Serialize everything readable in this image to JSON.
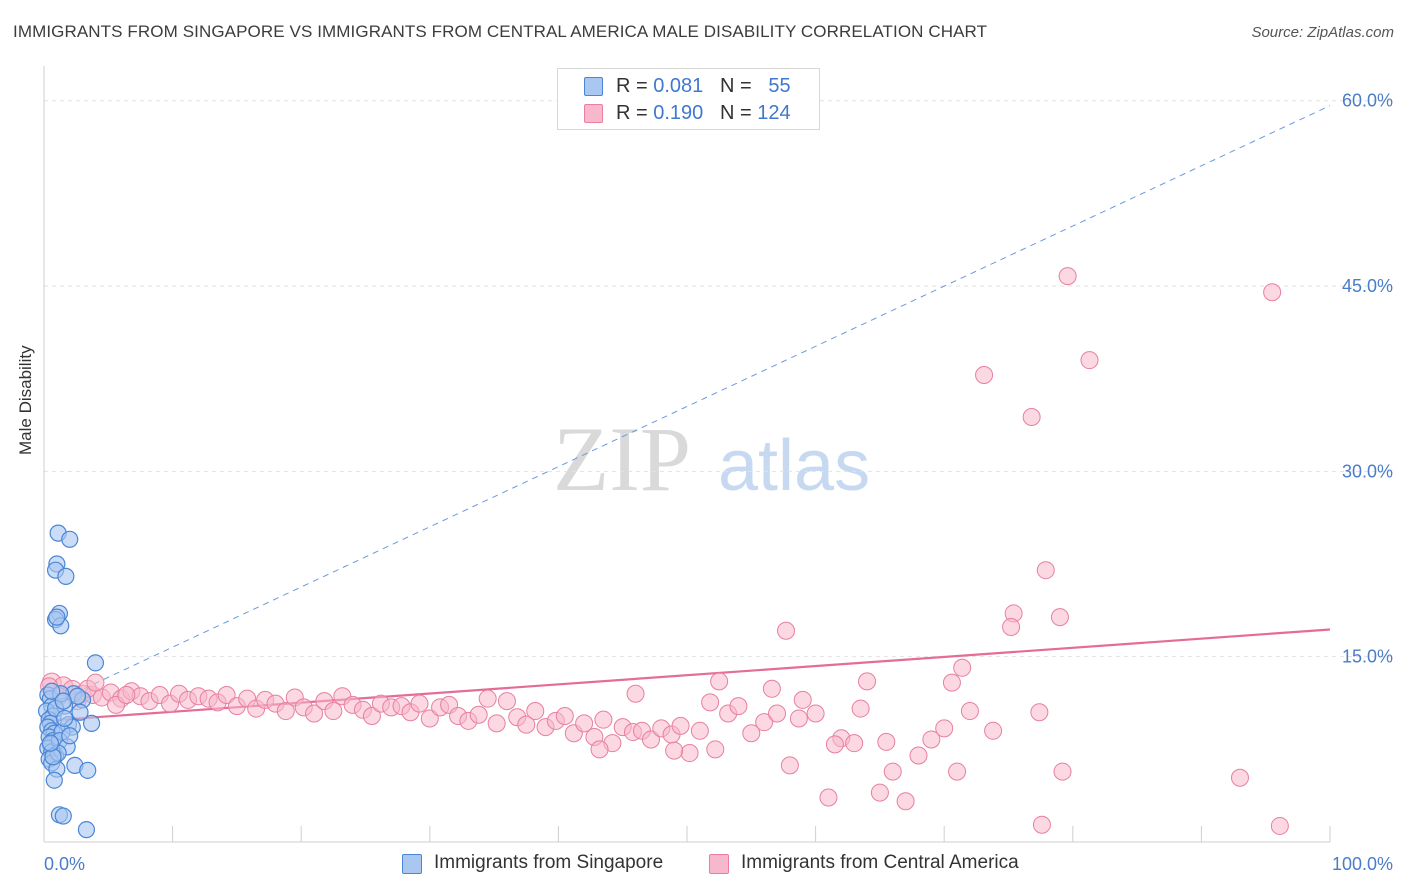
{
  "title": "IMMIGRANTS FROM SINGAPORE VS IMMIGRANTS FROM CENTRAL AMERICA MALE DISABILITY CORRELATION CHART",
  "source": "Source: ZipAtlas.com",
  "watermark": {
    "zip": "ZIP",
    "atlas": "atlas"
  },
  "legend_top": {
    "rows": [
      {
        "r_label": "R = ",
        "r_value": "0.081",
        "n_label": "N = ",
        "n_value": "55"
      },
      {
        "r_label": "R = ",
        "r_value": "0.190",
        "n_label": "N = ",
        "n_value": "124"
      }
    ]
  },
  "legend_bottom": [
    "Immigrants from Singapore",
    "Immigrants from Central America"
  ],
  "colors": {
    "singapore_fill": "#a9c7f0",
    "singapore_stroke": "#4a86d6",
    "central_fill": "#f7b8cb",
    "central_stroke": "#e87fa1",
    "singapore_line": "#6a9ade",
    "central_line": "#e46c97",
    "tick_text": "#4a7cc9",
    "grid": "#e2e2e2"
  },
  "chart_data": {
    "type": "scatter",
    "title": "IMMIGRANTS FROM SINGAPORE VS IMMIGRANTS FROM CENTRAL AMERICA MALE DISABILITY CORRELATION CHART",
    "xlabel": "",
    "ylabel": "Male Disability",
    "xlim": [
      0,
      100
    ],
    "ylim": [
      0,
      62
    ],
    "x_tick_labels": [
      "0.0%",
      "100.0%"
    ],
    "y_ticks": [
      15,
      30,
      45,
      60
    ],
    "y_tick_labels": [
      "15.0%",
      "30.0%",
      "45.0%",
      "60.0%"
    ],
    "grid": "horizontal dashed",
    "legend_placement": "top-center and bottom",
    "series": [
      {
        "name": "Immigrants from Singapore",
        "R": 0.081,
        "N": 55,
        "trend": {
          "style": "dashed",
          "x0": 0,
          "y0": 10.9,
          "x1": 100,
          "y1": 59.6
        },
        "points": [
          [
            0.3,
            11.9
          ],
          [
            0.5,
            11.6
          ],
          [
            0.6,
            11.0
          ],
          [
            0.2,
            10.6
          ],
          [
            0.7,
            10.2
          ],
          [
            0.4,
            9.9
          ],
          [
            0.5,
            9.6
          ],
          [
            0.3,
            9.3
          ],
          [
            0.6,
            9.0
          ],
          [
            0.8,
            8.8
          ],
          [
            0.4,
            8.5
          ],
          [
            0.7,
            8.2
          ],
          [
            0.5,
            7.9
          ],
          [
            0.3,
            7.6
          ],
          [
            0.6,
            7.3
          ],
          [
            0.9,
            7.0
          ],
          [
            0.4,
            6.7
          ],
          [
            0.6,
            6.4
          ],
          [
            1.0,
            5.9
          ],
          [
            0.8,
            5.0
          ],
          [
            1.2,
            2.2
          ],
          [
            1.5,
            2.1
          ],
          [
            3.3,
            1.0
          ],
          [
            1.1,
            25.0
          ],
          [
            2.0,
            24.5
          ],
          [
            1.0,
            22.5
          ],
          [
            0.9,
            22.0
          ],
          [
            1.7,
            21.5
          ],
          [
            1.2,
            18.5
          ],
          [
            0.9,
            18.0
          ],
          [
            1.3,
            17.5
          ],
          [
            1.0,
            18.2
          ],
          [
            4.0,
            14.5
          ],
          [
            2.3,
            12.0
          ],
          [
            3.0,
            11.5
          ],
          [
            1.6,
            11.0
          ],
          [
            1.9,
            9.5
          ],
          [
            3.7,
            9.6
          ],
          [
            2.2,
            9.3
          ],
          [
            1.4,
            8.9
          ],
          [
            1.2,
            8.2
          ],
          [
            1.8,
            7.7
          ],
          [
            2.4,
            6.2
          ],
          [
            3.4,
            5.8
          ],
          [
            1.3,
            12.0
          ],
          [
            0.6,
            12.2
          ],
          [
            2.6,
            11.8
          ],
          [
            0.9,
            10.8
          ],
          [
            1.6,
            10.0
          ],
          [
            2.0,
            8.6
          ],
          [
            1.1,
            7.2
          ],
          [
            0.7,
            6.9
          ],
          [
            1.5,
            11.4
          ],
          [
            2.8,
            10.5
          ],
          [
            0.5,
            8.0
          ]
        ]
      },
      {
        "name": "Immigrants from Central America",
        "R": 0.19,
        "N": 124,
        "trend": {
          "style": "solid",
          "x0": 0,
          "y0": 9.8,
          "x1": 100,
          "y1": 17.2
        },
        "points": [
          [
            0.6,
            12.9
          ],
          [
            1.5,
            12.6
          ],
          [
            2.2,
            12.3
          ],
          [
            3.0,
            12.0
          ],
          [
            3.8,
            11.9
          ],
          [
            4.5,
            11.7
          ],
          [
            5.2,
            12.1
          ],
          [
            6.0,
            11.6
          ],
          [
            6.8,
            12.2
          ],
          [
            7.5,
            11.8
          ],
          [
            8.2,
            11.4
          ],
          [
            9.0,
            11.9
          ],
          [
            9.8,
            11.2
          ],
          [
            10.5,
            12.0
          ],
          [
            11.2,
            11.5
          ],
          [
            12.0,
            11.8
          ],
          [
            12.8,
            11.6
          ],
          [
            13.5,
            11.3
          ],
          [
            14.2,
            11.9
          ],
          [
            15.0,
            11.0
          ],
          [
            15.8,
            11.6
          ],
          [
            16.5,
            10.8
          ],
          [
            17.2,
            11.5
          ],
          [
            18.0,
            11.2
          ],
          [
            18.8,
            10.6
          ],
          [
            19.5,
            11.7
          ],
          [
            20.2,
            10.9
          ],
          [
            21.0,
            10.4
          ],
          [
            21.8,
            11.4
          ],
          [
            22.5,
            10.6
          ],
          [
            23.2,
            11.8
          ],
          [
            24.0,
            11.1
          ],
          [
            24.8,
            10.7
          ],
          [
            25.5,
            10.2
          ],
          [
            26.2,
            11.2
          ],
          [
            27.0,
            10.9
          ],
          [
            27.8,
            11.0
          ],
          [
            28.5,
            10.5
          ],
          [
            29.2,
            11.2
          ],
          [
            30.0,
            10.0
          ],
          [
            30.8,
            10.9
          ],
          [
            31.5,
            11.1
          ],
          [
            32.2,
            10.2
          ],
          [
            33.0,
            9.8
          ],
          [
            33.8,
            10.3
          ],
          [
            34.5,
            11.6
          ],
          [
            35.2,
            9.6
          ],
          [
            36.0,
            11.4
          ],
          [
            36.8,
            10.1
          ],
          [
            37.5,
            9.5
          ],
          [
            38.2,
            10.6
          ],
          [
            39.0,
            9.3
          ],
          [
            39.8,
            9.8
          ],
          [
            40.5,
            10.2
          ],
          [
            41.2,
            8.8
          ],
          [
            42.0,
            9.6
          ],
          [
            42.8,
            8.5
          ],
          [
            43.5,
            9.9
          ],
          [
            44.2,
            8.0
          ],
          [
            45.0,
            9.3
          ],
          [
            45.8,
            8.9
          ],
          [
            46.5,
            9.0
          ],
          [
            47.2,
            8.3
          ],
          [
            48.0,
            9.2
          ],
          [
            48.8,
            8.7
          ],
          [
            49.5,
            9.4
          ],
          [
            50.2,
            7.2
          ],
          [
            51.0,
            9.0
          ],
          [
            51.8,
            11.3
          ],
          [
            52.5,
            13.0
          ],
          [
            53.2,
            10.4
          ],
          [
            54.0,
            11.0
          ],
          [
            55.0,
            8.8
          ],
          [
            56.0,
            9.7
          ],
          [
            57.0,
            10.4
          ],
          [
            58.0,
            6.2
          ],
          [
            59.0,
            11.5
          ],
          [
            60.0,
            10.4
          ],
          [
            61.0,
            3.6
          ],
          [
            62.0,
            8.4
          ],
          [
            63.0,
            8.0
          ],
          [
            64.0,
            13.0
          ],
          [
            65.0,
            4.0
          ],
          [
            66.0,
            5.7
          ],
          [
            67.0,
            3.3
          ],
          [
            68.0,
            7.0
          ],
          [
            69.0,
            8.3
          ],
          [
            70.0,
            9.2
          ],
          [
            71.0,
            5.7
          ],
          [
            72.0,
            10.6
          ],
          [
            52.2,
            7.5
          ],
          [
            49.0,
            7.4
          ],
          [
            46.0,
            12.0
          ],
          [
            43.2,
            7.5
          ],
          [
            56.6,
            12.4
          ],
          [
            61.5,
            7.9
          ],
          [
            63.5,
            10.8
          ],
          [
            65.5,
            8.1
          ],
          [
            57.7,
            17.1
          ],
          [
            58.7,
            10.0
          ],
          [
            75.4,
            18.5
          ],
          [
            76.8,
            34.4
          ],
          [
            77.9,
            22.0
          ],
          [
            79.0,
            18.2
          ],
          [
            79.6,
            45.8
          ],
          [
            81.3,
            39.0
          ],
          [
            73.1,
            37.8
          ],
          [
            70.6,
            12.9
          ],
          [
            71.4,
            14.1
          ],
          [
            73.8,
            9.0
          ],
          [
            75.2,
            17.4
          ],
          [
            77.4,
            10.5
          ],
          [
            79.2,
            5.7
          ],
          [
            93.0,
            5.2
          ],
          [
            77.6,
            1.4
          ],
          [
            96.1,
            1.3
          ],
          [
            95.5,
            44.5
          ],
          [
            0.4,
            12.6
          ],
          [
            1.2,
            11.8
          ],
          [
            2.6,
            11.4
          ],
          [
            3.4,
            12.4
          ],
          [
            4.0,
            12.9
          ],
          [
            5.6,
            11.1
          ],
          [
            6.4,
            11.9
          ]
        ]
      }
    ]
  }
}
